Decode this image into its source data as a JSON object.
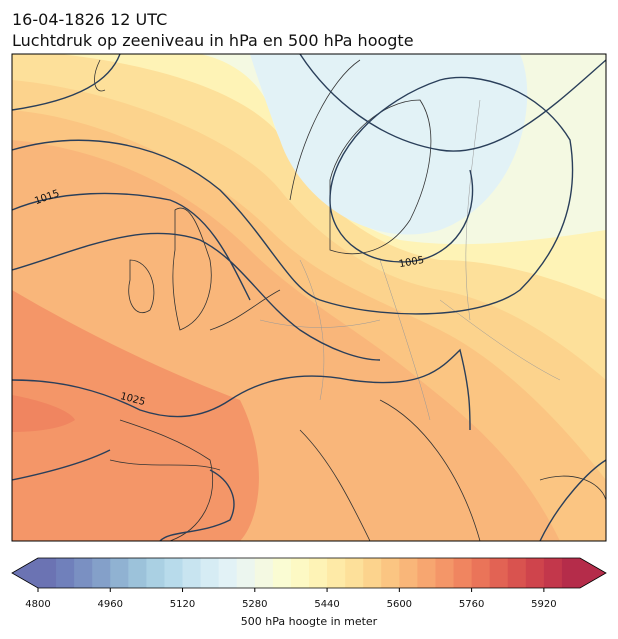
{
  "title": "16-04-1826 12 UTC",
  "subtitle": "Luchtdruk op zeeniveau in hPa en 500 hPa hoogte",
  "contour_labels": [
    1015,
    1025,
    1005
  ],
  "colorbar": {
    "label": "500 hPa hoogte in meter",
    "lim": [
      4800,
      6000
    ],
    "ticks": [
      4800,
      4960,
      5120,
      5280,
      5440,
      5600,
      5760,
      5920
    ],
    "colors": [
      "#6b73b3",
      "#7080bb",
      "#7a90c2",
      "#84a0c9",
      "#90b2d2",
      "#9cc2da",
      "#aad0e3",
      "#b8dbeb",
      "#c8e4f0",
      "#d6ecf4",
      "#e2f2f6",
      "#ecf6ef",
      "#f4f9e2",
      "#fafcd3",
      "#fdf9c4",
      "#fef3b6",
      "#feeaa7",
      "#fde09a",
      "#fcd38d",
      "#fbc582",
      "#f9b679",
      "#f7a670",
      "#f49668",
      "#f08560",
      "#ea7459",
      "#e26354",
      "#d9534f",
      "#cf444c",
      "#c3374b",
      "#b52c4a"
    ]
  }
}
